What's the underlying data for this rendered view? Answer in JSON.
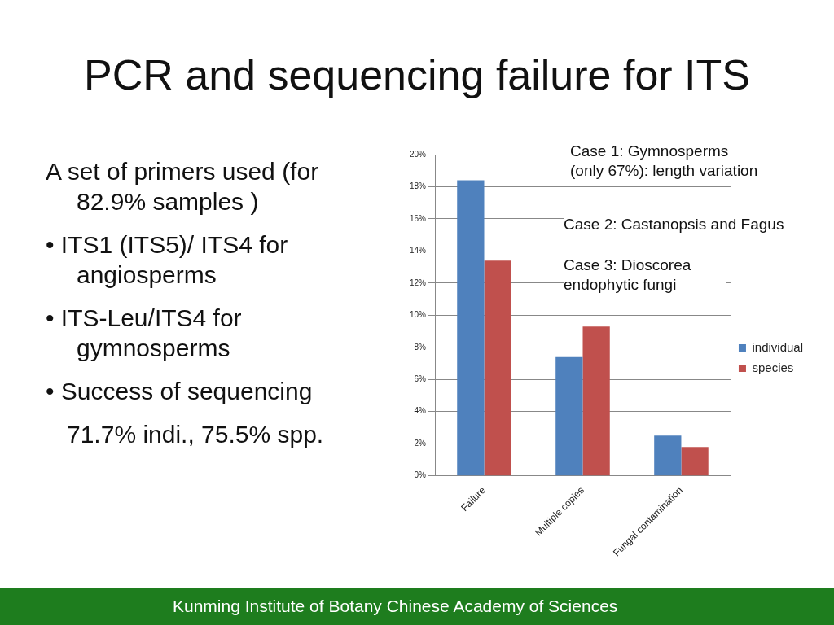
{
  "chart_data": {
    "type": "bar",
    "title": "PCR and sequencing failure for ITS",
    "categories": [
      "Failure",
      "Multiple copies",
      "Fungal contamination"
    ],
    "series": [
      {
        "name": "individual",
        "color": "#4f81bd",
        "values": [
          18.4,
          7.4,
          2.5
        ]
      },
      {
        "name": "species",
        "color": "#c0504d",
        "values": [
          13.4,
          9.3,
          1.8
        ]
      }
    ],
    "ylim": [
      0,
      20
    ],
    "yticks": [
      {
        "value": 0,
        "label": "0%"
      },
      {
        "value": 2,
        "label": "2%"
      },
      {
        "value": 4,
        "label": "4%"
      },
      {
        "value": 6,
        "label": "6%"
      },
      {
        "value": 8,
        "label": "8%"
      },
      {
        "value": 10,
        "label": "10%"
      },
      {
        "value": 12,
        "label": "12%"
      },
      {
        "value": 14,
        "label": "14%"
      },
      {
        "value": 16,
        "label": "16%"
      },
      {
        "value": 18,
        "label": "18%"
      },
      {
        "value": 20,
        "label": "20%"
      }
    ],
    "grid": "y",
    "legend": "right",
    "annotations": [
      "A set of primers used (for 82.9% samples )",
      "• ITS1 (ITS5)/ ITS4 for angiosperms",
      "• ITS-Leu/ITS4 for gymnosperms",
      "• Success of sequencing",
      "71.7% indi., 75.5% spp.",
      "Case 1: Gymnosperms (only 67%): length variation",
      "Case 2: Castanopsis and Fagus",
      "Case 3: Dioscorea endophytic fungi",
      "Kunming Institute of Botany Chinese Academy of Sciences"
    ]
  }
}
